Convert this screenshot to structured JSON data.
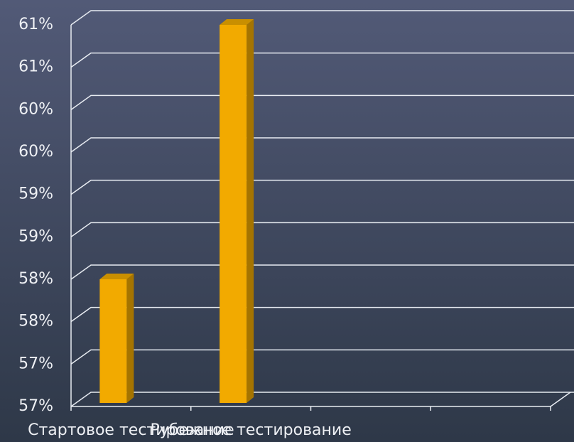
{
  "chart_data": {
    "type": "bar3d",
    "categories": [
      "Стартовое тестирование",
      "Рубежное тестирование",
      null,
      null
    ],
    "values": [
      58,
      61,
      null,
      null
    ],
    "color": "#f2aa00",
    "ylim": [
      56.5,
      61
    ],
    "yticks": [
      {
        "value": 56.5,
        "label": "57%"
      },
      {
        "value": 57,
        "label": "57%"
      },
      {
        "value": 57.5,
        "label": "58%"
      },
      {
        "value": 58,
        "label": "58%"
      },
      {
        "value": 58.5,
        "label": "59%"
      },
      {
        "value": 59,
        "label": "59%"
      },
      {
        "value": 59.5,
        "label": "60%"
      },
      {
        "value": 60,
        "label": "60%"
      },
      {
        "value": 60.5,
        "label": "61%"
      },
      {
        "value": 61,
        "label": "61%"
      }
    ],
    "grid": true
  }
}
